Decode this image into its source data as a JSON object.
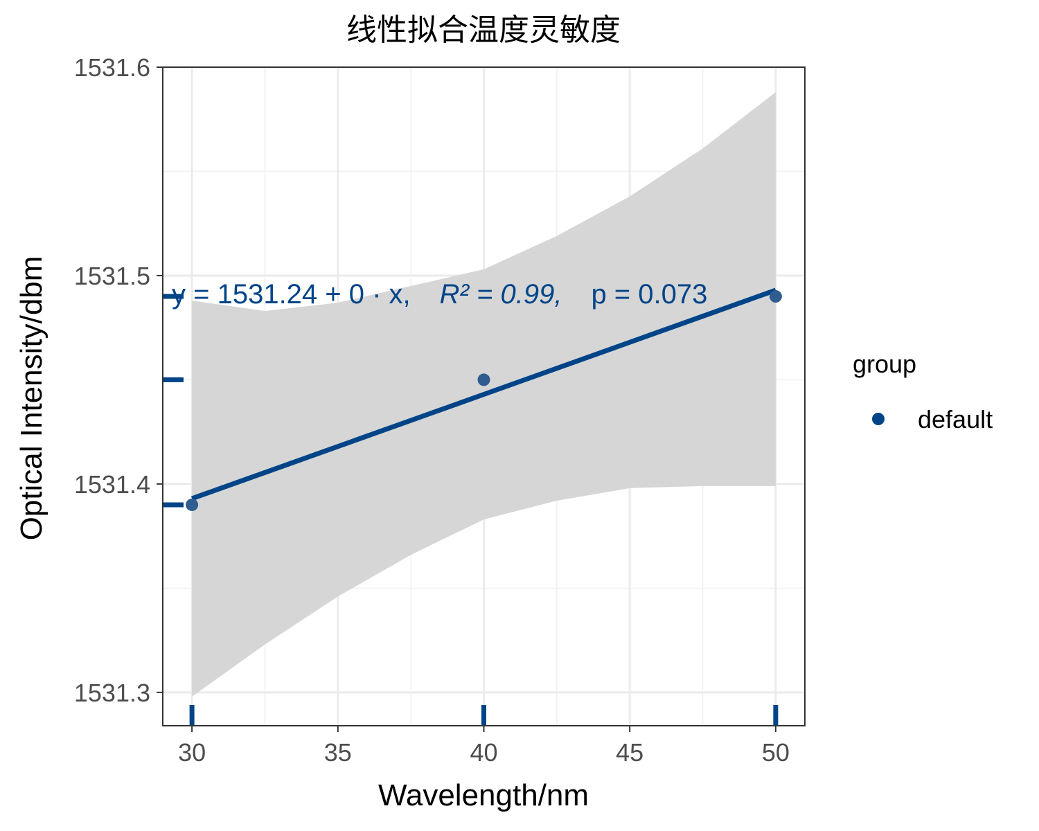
{
  "chart_data": {
    "type": "scatter",
    "title": "线性拟合温度灵敏度",
    "xlabel": "Wavelength/nm",
    "ylabel": "Optical Intensity/dbm",
    "xlim": [
      29,
      51
    ],
    "ylim": [
      1531.284,
      1531.6
    ],
    "x_ticks": [
      30,
      35,
      40,
      45,
      50
    ],
    "y_ticks": [
      1531.3,
      1531.4,
      1531.5,
      1531.6
    ],
    "x_tick_labels": [
      "30",
      "35",
      "40",
      "45",
      "50"
    ],
    "y_tick_labels": [
      "1531.3",
      "1531.4",
      "1531.5",
      "1531.6"
    ],
    "grid": true,
    "series": [
      {
        "name": "default",
        "color": "#004488",
        "points": [
          {
            "x": 30,
            "y": 1531.39
          },
          {
            "x": 40,
            "y": 1531.45
          },
          {
            "x": 50,
            "y": 1531.49
          }
        ]
      }
    ],
    "fit_line": {
      "x": [
        30,
        50
      ],
      "y": [
        1531.393,
        1531.493
      ],
      "color": "#004488"
    },
    "confidence_band": {
      "x": [
        30,
        32.5,
        35,
        37.5,
        40,
        42.5,
        45,
        47.5,
        50
      ],
      "upper": [
        1531.488,
        1531.483,
        1531.487,
        1531.495,
        1531.503,
        1531.519,
        1531.538,
        1531.561,
        1531.588
      ],
      "lower": [
        1531.298,
        1531.323,
        1531.346,
        1531.366,
        1531.383,
        1531.392,
        1531.398,
        1531.399,
        1531.399
      ],
      "color": "#d6d6d6"
    },
    "rug": {
      "x": [
        30,
        40,
        50
      ],
      "y": [
        1531.39,
        1531.45,
        1531.49
      ]
    },
    "annotation": {
      "equation": "y = 1531.24 + 0 · x,",
      "r2": "R² = 0.99,",
      "p": "p = 0.073",
      "color": "#004488"
    },
    "legend": {
      "title": "group",
      "entries": [
        "default"
      ],
      "placement": "right"
    }
  }
}
